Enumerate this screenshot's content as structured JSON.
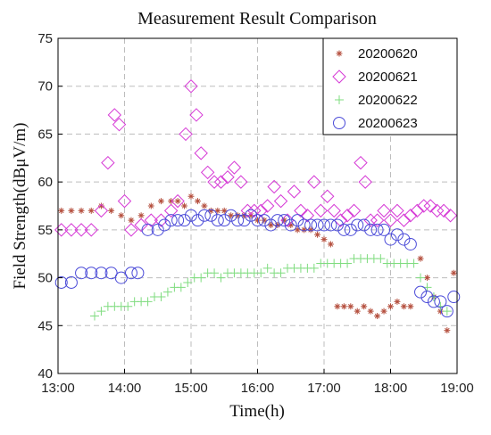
{
  "chart_data": {
    "type": "scatter",
    "title": "Measurement Result Comparison",
    "xlabel": "Time(h)",
    "ylabel": "Field Strength(dBμV/m)",
    "xlim": [
      13,
      19
    ],
    "ylim": [
      40,
      75
    ],
    "x_ticks": [
      13,
      14,
      15,
      16,
      17,
      18,
      19
    ],
    "x_tick_labels": [
      "13:00",
      "14:00",
      "15:00",
      "16:00",
      "17:00",
      "18:00",
      "19:00"
    ],
    "y_ticks": [
      40,
      45,
      50,
      55,
      60,
      65,
      70,
      75
    ],
    "y_tick_labels": [
      "40",
      "45",
      "50",
      "55",
      "60",
      "65",
      "70",
      "75"
    ],
    "grid": true,
    "legend_position": "top-right",
    "series": [
      {
        "name": "20200620",
        "marker": "asterisk",
        "color": "#b5503f",
        "x": [
          13.05,
          13.2,
          13.35,
          13.5,
          13.65,
          13.8,
          13.95,
          14.1,
          14.25,
          14.4,
          14.55,
          14.7,
          14.8,
          14.9,
          15.0,
          15.1,
          15.2,
          15.3,
          15.4,
          15.5,
          15.6,
          15.7,
          15.8,
          15.9,
          16.0,
          16.1,
          16.2,
          16.3,
          16.4,
          16.5,
          16.6,
          16.7,
          16.8,
          16.9,
          17.0,
          17.1,
          17.2,
          17.3,
          17.4,
          17.5,
          17.6,
          17.7,
          17.8,
          17.9,
          18.0,
          18.1,
          18.2,
          18.3,
          18.45,
          18.55,
          18.65,
          18.75,
          18.85,
          18.95
        ],
        "y": [
          57,
          57,
          57,
          57,
          57.5,
          57,
          56.5,
          56,
          56.5,
          57.5,
          58,
          58,
          58,
          57.5,
          58.5,
          58,
          57.5,
          57,
          57,
          57,
          56.5,
          56.5,
          56.5,
          56.5,
          56,
          56,
          55.5,
          55.5,
          56,
          55.5,
          55,
          55,
          55,
          54.5,
          54,
          53.5,
          47,
          47,
          47,
          46.5,
          47,
          46.5,
          46,
          46.5,
          47,
          47.5,
          47,
          47,
          52,
          50,
          48,
          46.5,
          44.5,
          50.5
        ]
      },
      {
        "name": "20200621",
        "marker": "diamond",
        "color": "#d63ad6",
        "x": [
          13.05,
          13.2,
          13.35,
          13.5,
          13.65,
          13.75,
          13.85,
          13.92,
          14.0,
          14.1,
          14.25,
          14.4,
          14.55,
          14.7,
          14.8,
          14.92,
          15.0,
          15.08,
          15.15,
          15.25,
          15.35,
          15.45,
          15.55,
          15.65,
          15.75,
          15.85,
          15.95,
          16.05,
          16.15,
          16.25,
          16.35,
          16.45,
          16.55,
          16.65,
          16.75,
          16.85,
          16.95,
          17.05,
          17.15,
          17.25,
          17.35,
          17.45,
          17.55,
          17.62,
          17.7,
          17.8,
          17.9,
          18.0,
          18.1,
          18.2,
          18.3,
          18.4,
          18.5,
          18.6,
          18.7,
          18.8,
          18.9
        ],
        "y": [
          55,
          55,
          55,
          55,
          57,
          62,
          67,
          66,
          58,
          55,
          55.5,
          56,
          56,
          57,
          58,
          65,
          70,
          67,
          63,
          61,
          60,
          60,
          60.5,
          61.5,
          60,
          57,
          57,
          57,
          57.5,
          59.5,
          58,
          56,
          59,
          57,
          56.5,
          60,
          57,
          58.5,
          57,
          56,
          56.5,
          57,
          62,
          60,
          56,
          56,
          57,
          56,
          57,
          56,
          56.5,
          57,
          57.5,
          57.5,
          57,
          57,
          56.5
        ]
      },
      {
        "name": "20200622",
        "marker": "plus",
        "color": "#7fdc7f",
        "x": [
          13.55,
          13.65,
          13.75,
          13.85,
          13.95,
          14.05,
          14.15,
          14.25,
          14.35,
          14.45,
          14.55,
          14.65,
          14.75,
          14.85,
          14.95,
          15.05,
          15.15,
          15.25,
          15.35,
          15.45,
          15.55,
          15.65,
          15.75,
          15.85,
          15.95,
          16.05,
          16.15,
          16.25,
          16.35,
          16.45,
          16.55,
          16.65,
          16.75,
          16.85,
          16.95,
          17.05,
          17.15,
          17.25,
          17.35,
          17.45,
          17.55,
          17.65,
          17.75,
          17.85,
          17.95,
          18.05,
          18.15,
          18.25,
          18.35,
          18.45,
          18.55,
          18.65,
          18.75,
          18.85
        ],
        "y": [
          46,
          46.5,
          47,
          47,
          47,
          47,
          47.5,
          47.5,
          47.5,
          48,
          48,
          48.5,
          49,
          49,
          49.5,
          50,
          50,
          50.5,
          50.5,
          50,
          50.5,
          50.5,
          50.5,
          50.5,
          50.5,
          50.5,
          51,
          50.5,
          50.5,
          51,
          51,
          51,
          51,
          51,
          51.5,
          51.5,
          51.5,
          51.5,
          51.5,
          52,
          52,
          52,
          52,
          52,
          51.5,
          51.5,
          51.5,
          51.5,
          51.5,
          50,
          49,
          48,
          47,
          46.5
        ]
      },
      {
        "name": "20200623",
        "marker": "circle",
        "color": "#4a4ad8",
        "x": [
          13.05,
          13.2,
          13.35,
          13.5,
          13.65,
          13.8,
          13.95,
          14.1,
          14.2,
          14.35,
          14.5,
          14.6,
          14.7,
          14.8,
          14.9,
          15.0,
          15.1,
          15.2,
          15.3,
          15.4,
          15.5,
          15.6,
          15.7,
          15.8,
          15.9,
          16.0,
          16.1,
          16.2,
          16.3,
          16.4,
          16.5,
          16.6,
          16.7,
          16.8,
          16.9,
          17.0,
          17.1,
          17.2,
          17.3,
          17.4,
          17.5,
          17.6,
          17.7,
          17.8,
          17.9,
          18.0,
          18.1,
          18.2,
          18.3,
          18.45,
          18.55,
          18.65,
          18.75,
          18.85,
          18.95
        ],
        "y": [
          49.5,
          49.5,
          50.5,
          50.5,
          50.5,
          50.5,
          50,
          50.5,
          50.5,
          55,
          55,
          55.5,
          56,
          56,
          56,
          56.5,
          56,
          56.5,
          56.5,
          56,
          56,
          56.5,
          56,
          56,
          56.5,
          56,
          56,
          55.5,
          56,
          56,
          55.5,
          56,
          55.5,
          55.5,
          55.5,
          55.5,
          55.5,
          55.5,
          55,
          55,
          55.5,
          55.5,
          55,
          55,
          55,
          54,
          54.5,
          54,
          53.5,
          48.5,
          48,
          47.5,
          47.5,
          46.5,
          48
        ]
      }
    ]
  }
}
